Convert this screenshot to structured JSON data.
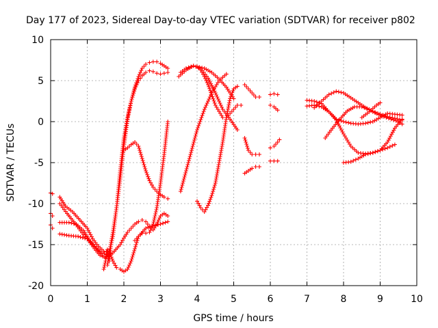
{
  "chart_data": {
    "type": "scatter",
    "title": "Day 177 of 2023, Sidereal Day-to-day VTEC variation (SDTVAR) for receiver p802",
    "xlabel": "GPS time / hours",
    "ylabel": "SDTVAR / TECUs",
    "xlim": [
      0,
      10
    ],
    "ylim": [
      -20,
      10
    ],
    "xticks": [
      0,
      1,
      2,
      3,
      4,
      5,
      6,
      7,
      8,
      9,
      10
    ],
    "yticks": [
      -20,
      -15,
      -10,
      -5,
      0,
      5,
      10
    ],
    "grid": true,
    "marker": "plus",
    "color": "#ff0000",
    "series": [
      {
        "x": [
          0.0,
          0.05
        ],
        "y": [
          -8.7,
          -8.8
        ]
      },
      {
        "x": [
          0.0,
          0.05
        ],
        "y": [
          -11.2,
          -11.5
        ]
      },
      {
        "x": [
          0.0,
          0.05
        ],
        "y": [
          -12.6,
          -13.0
        ]
      },
      {
        "x": [
          0.25,
          0.4,
          0.6,
          0.8,
          1.0,
          1.15,
          1.3,
          1.45,
          1.6
        ],
        "y": [
          -9.2,
          -10.3,
          -11.0,
          -12.0,
          -13.0,
          -14.3,
          -15.2,
          -15.8,
          -16.0
        ]
      },
      {
        "x": [
          0.25,
          0.45,
          0.7,
          0.9,
          1.05,
          1.2,
          1.4,
          1.6
        ],
        "y": [
          -10.0,
          -11.2,
          -12.6,
          -13.8,
          -14.5,
          -15.2,
          -16.0,
          -16.3
        ]
      },
      {
        "x": [
          0.25,
          0.5,
          0.7,
          0.9,
          1.05,
          1.2,
          1.4
        ],
        "y": [
          -12.3,
          -12.3,
          -12.5,
          -13.3,
          -14.4,
          -15.3,
          -16.3
        ]
      },
      {
        "x": [
          0.25,
          0.5,
          0.75,
          1.0,
          1.2,
          1.35,
          1.5
        ],
        "y": [
          -13.7,
          -13.9,
          -14.0,
          -14.3,
          -15.5,
          -16.3,
          -16.6
        ]
      },
      {
        "x": [
          1.45,
          1.5,
          1.55,
          1.6,
          1.65,
          1.7,
          1.8,
          1.9,
          2.0,
          2.1,
          2.2,
          2.3,
          2.4,
          2.5,
          2.6,
          2.7,
          2.8,
          2.9,
          3.0,
          3.1,
          3.2
        ],
        "y": [
          -18.0,
          -17.0,
          -15.6,
          -17.0,
          -15.0,
          -14.0,
          -10.5,
          -6.0,
          -2.0,
          0.5,
          2.5,
          4.0,
          5.0,
          5.6,
          6.0,
          6.2,
          6.1,
          5.9,
          5.8,
          5.9,
          6.0
        ]
      },
      {
        "x": [
          1.55,
          1.6,
          1.7,
          1.8,
          1.9,
          2.0,
          2.1,
          2.2,
          2.3,
          2.4,
          2.5,
          2.6,
          2.7,
          2.8,
          2.9,
          3.0,
          3.1,
          3.2
        ],
        "y": [
          -17.5,
          -16.0,
          -13.5,
          -10.5,
          -7.0,
          -3.0,
          0.3,
          2.5,
          4.2,
          5.5,
          6.5,
          7.0,
          7.2,
          7.3,
          7.3,
          7.1,
          6.8,
          6.5
        ]
      },
      {
        "x": [
          1.6,
          1.7,
          1.8,
          1.9,
          2.0,
          2.1,
          2.2,
          2.3,
          2.4,
          2.6,
          2.8,
          3.0,
          3.2
        ],
        "y": [
          -15.8,
          -17.0,
          -17.8,
          -18.0,
          -18.3,
          -18.0,
          -17.0,
          -15.5,
          -14.0,
          -13.0,
          -12.7,
          -12.5,
          -12.2
        ]
      },
      {
        "x": [
          1.5,
          1.7,
          1.9,
          2.0,
          2.1,
          2.2,
          2.3,
          2.4,
          2.5,
          2.6,
          2.7,
          2.8,
          2.9,
          3.0,
          3.1,
          3.2
        ],
        "y": [
          -16.5,
          -16.0,
          -15.0,
          -14.2,
          -13.5,
          -13.0,
          -12.5,
          -12.2,
          -12.0,
          -12.2,
          -12.8,
          -13.2,
          -12.5,
          -11.5,
          -11.2,
          -11.5
        ]
      },
      {
        "x": [
          2.0,
          2.1,
          2.2,
          2.3,
          2.4,
          2.5,
          2.6,
          2.7,
          2.8,
          2.9,
          3.0,
          3.1,
          3.2
        ],
        "y": [
          -3.5,
          -3.2,
          -2.8,
          -2.5,
          -3.0,
          -4.5,
          -6.0,
          -7.2,
          -8.0,
          -8.5,
          -8.9,
          -9.2,
          -9.4
        ]
      },
      {
        "x": [
          2.3,
          2.4,
          2.5,
          2.6,
          2.7,
          2.8,
          2.9,
          3.0,
          3.1,
          3.2
        ],
        "y": [
          -14.5,
          -14.0,
          -13.6,
          -13.6,
          -13.5,
          -12.5,
          -10.5,
          -7.5,
          -4.0,
          0.0
        ]
      },
      {
        "x": [
          3.55,
          3.7,
          3.85,
          4.0,
          4.2,
          4.4,
          4.6,
          4.8
        ],
        "y": [
          -8.5,
          -6.0,
          -3.5,
          -1.0,
          1.5,
          3.5,
          5.0,
          5.8
        ]
      },
      {
        "x": [
          3.55,
          3.7,
          3.9,
          4.0,
          4.1,
          4.2,
          4.3,
          4.4,
          4.5,
          4.7,
          4.8,
          4.9,
          5.0,
          5.1,
          5.2
        ],
        "y": [
          6.0,
          6.5,
          6.8,
          6.7,
          6.3,
          5.5,
          4.5,
          3.3,
          2.0,
          0.5,
          0.5,
          1.0,
          1.5,
          2.0,
          2.0
        ]
      },
      {
        "x": [
          3.5,
          3.7,
          3.9,
          4.1,
          4.3,
          4.5,
          4.7,
          4.9,
          5.1
        ],
        "y": [
          5.5,
          6.3,
          6.8,
          6.5,
          5.3,
          3.5,
          1.5,
          0.3,
          -1.0
        ]
      },
      {
        "x": [
          4.0,
          4.1,
          4.2,
          4.3,
          4.4,
          4.5,
          4.6,
          4.7,
          4.8,
          4.9,
          5.0,
          5.1
        ],
        "y": [
          -9.7,
          -10.5,
          -11.0,
          -10.2,
          -9.0,
          -7.5,
          -5.0,
          -2.5,
          0.5,
          2.8,
          4.0,
          4.3
        ]
      },
      {
        "x": [
          4.0,
          4.2,
          4.4,
          4.6,
          4.8,
          4.9,
          5.0
        ],
        "y": [
          6.7,
          6.5,
          6.0,
          5.2,
          4.2,
          3.5,
          2.8
        ]
      },
      {
        "x": [
          5.3,
          5.4,
          5.5,
          5.6,
          5.7
        ],
        "y": [
          4.5,
          4.0,
          3.5,
          3.0,
          3.0
        ]
      },
      {
        "x": [
          5.3,
          5.4,
          5.5,
          5.6,
          5.7
        ],
        "y": [
          -2.0,
          -3.5,
          -4.0,
          -4.0,
          -4.0
        ]
      },
      {
        "x": [
          5.3,
          5.4,
          5.5,
          5.6,
          5.7
        ],
        "y": [
          -6.3,
          -6.0,
          -5.7,
          -5.5,
          -5.5
        ]
      },
      {
        "x": [
          6.0,
          6.1,
          6.2
        ],
        "y": [
          3.3,
          3.4,
          3.3
        ]
      },
      {
        "x": [
          6.0,
          6.1,
          6.2
        ],
        "y": [
          2.0,
          1.8,
          1.4
        ]
      },
      {
        "x": [
          6.0,
          6.1,
          6.2,
          6.25
        ],
        "y": [
          -3.2,
          -3.0,
          -2.5,
          -2.2
        ]
      },
      {
        "x": [
          6.0,
          6.1,
          6.2
        ],
        "y": [
          -4.8,
          -4.8,
          -4.8
        ]
      },
      {
        "x": [
          7.0,
          7.2,
          7.4,
          7.6,
          7.8,
          8.0,
          8.2,
          8.4,
          8.6,
          8.8,
          9.0,
          9.2,
          9.4,
          9.6
        ],
        "y": [
          2.6,
          2.5,
          2.2,
          1.2,
          0.3,
          0.0,
          -0.2,
          -0.3,
          -0.2,
          0.0,
          0.5,
          1.0,
          0.9,
          0.8
        ]
      },
      {
        "x": [
          7.2,
          7.4,
          7.6,
          7.8,
          8.0,
          8.2,
          8.4,
          8.6,
          8.8,
          9.0,
          9.2,
          9.4,
          9.6
        ],
        "y": [
          1.7,
          2.5,
          3.3,
          3.7,
          3.5,
          2.9,
          2.3,
          1.7,
          1.2,
          0.9,
          0.6,
          0.4,
          0.2
        ]
      },
      {
        "x": [
          7.0,
          7.2,
          7.4,
          7.6,
          7.8,
          8.0,
          8.2,
          8.4,
          8.6,
          8.8,
          9.0,
          9.2,
          9.4,
          9.6
        ],
        "y": [
          1.9,
          2.0,
          1.8,
          1.2,
          0.2,
          -1.5,
          -3.0,
          -3.8,
          -3.9,
          -3.8,
          -3.5,
          -2.5,
          -0.8,
          0.3
        ]
      },
      {
        "x": [
          7.5,
          7.7,
          7.9,
          8.1,
          8.3,
          8.5,
          8.7,
          8.9,
          9.1,
          9.3,
          9.5,
          9.6
        ],
        "y": [
          -2.0,
          -0.8,
          0.3,
          1.3,
          1.8,
          1.8,
          1.5,
          1.0,
          0.6,
          0.3,
          0.0,
          -0.3
        ]
      },
      {
        "x": [
          8.0,
          8.2,
          8.4,
          8.6,
          8.8,
          9.0,
          9.2,
          9.4
        ],
        "y": [
          -5.0,
          -4.9,
          -4.5,
          -4.0,
          -3.8,
          -3.5,
          -3.2,
          -2.8
        ]
      },
      {
        "x": [
          8.5,
          8.7,
          8.9,
          9.0
        ],
        "y": [
          0.5,
          1.2,
          2.0,
          2.3
        ]
      }
    ]
  }
}
